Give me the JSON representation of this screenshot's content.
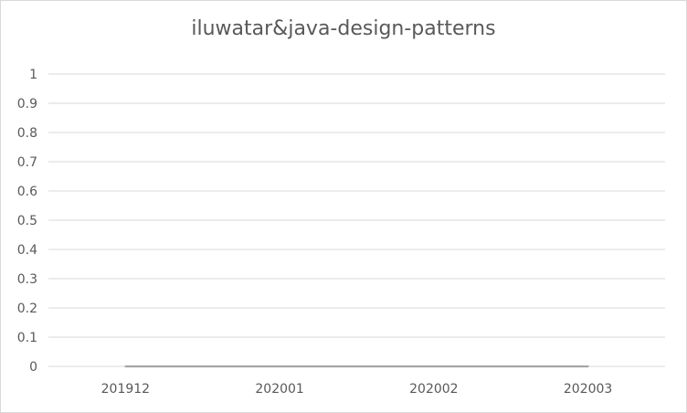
{
  "chart_data": {
    "type": "line",
    "title": "iluwatar&java-design-patterns",
    "categories": [
      "201912",
      "202001",
      "202002",
      "202003"
    ],
    "series": [
      {
        "values": [
          0,
          0,
          0,
          0
        ]
      }
    ],
    "xlabel": "",
    "ylabel": "",
    "ylim": [
      0,
      1
    ],
    "yticks": [
      "0",
      "0.1",
      "0.2",
      "0.3",
      "0.4",
      "0.5",
      "0.6",
      "0.7",
      "0.8",
      "0.9",
      "1"
    ],
    "grid": true,
    "legend": "none",
    "colors": {
      "line": "#a5a5a5",
      "grid": "#d9d9d9",
      "text": "#595959"
    }
  }
}
